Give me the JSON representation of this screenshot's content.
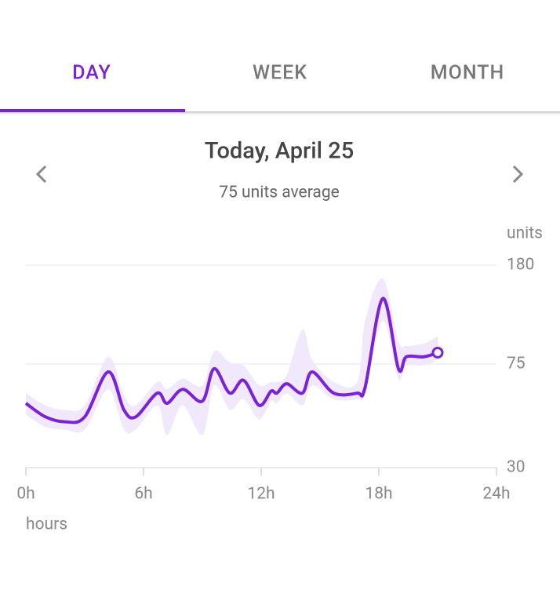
{
  "tabs": [
    "DAY",
    "WEEK",
    "MONTH"
  ],
  "chart_data": {
    "type": "line",
    "title": "Today, April 25",
    "subtitle": "75 units average",
    "y_label": "units",
    "x_label": "hours",
    "x": [
      0,
      1,
      2,
      3,
      4.2,
      5,
      5.6,
      6.7,
      7.2,
      8,
      9,
      9.6,
      10.4,
      11.1,
      11.9,
      12.5,
      12.8,
      13.3,
      14.1,
      14.6,
      15.7,
      16.9,
      17.3,
      18.2,
      19,
      19.4,
      20.3,
      21
    ],
    "values": [
      53,
      47,
      45,
      47,
      70,
      50,
      47,
      58,
      53,
      60,
      54,
      72,
      58,
      65,
      52,
      59,
      58,
      63,
      58,
      70,
      58,
      58,
      61,
      134,
      72,
      80,
      80,
      83
    ],
    "range": {
      "color": "#f1e8fc",
      "high": [
        58,
        52,
        50,
        52,
        80,
        57,
        52,
        64,
        60,
        66,
        62,
        84,
        76,
        74,
        62,
        64,
        64,
        68,
        102,
        78,
        64,
        64,
        110,
        160,
        92,
        88,
        90,
        96
      ],
      "low": [
        48,
        43,
        42,
        42,
        60,
        42,
        42,
        52,
        40,
        52,
        40,
        62,
        50,
        55,
        46,
        54,
        53,
        58,
        52,
        62,
        55,
        55,
        58,
        110,
        66,
        74,
        74,
        78
      ]
    },
    "color": "#7a22d6",
    "xlim": [
      0,
      24
    ],
    "xticks": [
      {
        "value": 0,
        "label": "0h"
      },
      {
        "value": 6,
        "label": "6h"
      },
      {
        "value": 12,
        "label": "12h"
      },
      {
        "value": 18,
        "label": "18h"
      },
      {
        "value": 24,
        "label": "24h"
      }
    ],
    "ylim": [
      30,
      180
    ],
    "yticks": [
      30,
      75,
      180
    ],
    "log_y": true,
    "grid": true
  }
}
